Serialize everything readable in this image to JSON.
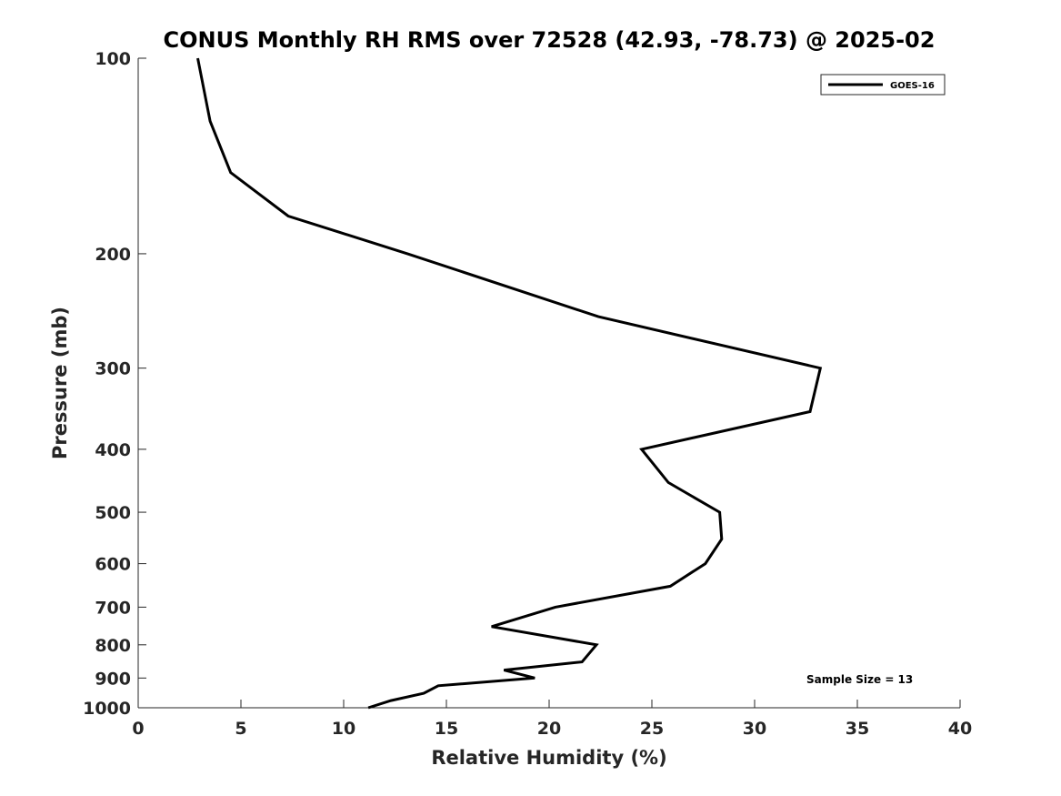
{
  "chart_data": {
    "type": "line",
    "title": "CONUS Monthly RH RMS over 72528 (42.93, -78.73) @ 2025-02",
    "xlabel": "Relative Humidity (%)",
    "ylabel": "Pressure (mb)",
    "xlim": [
      0,
      40
    ],
    "ylim": [
      100,
      1000
    ],
    "y_scale": "log",
    "y_reversed": true,
    "x_ticks": [
      0,
      5,
      10,
      15,
      20,
      25,
      30,
      35,
      40
    ],
    "x_tick_labels": [
      "0",
      "5",
      "10",
      "15",
      "20",
      "25",
      "30",
      "35",
      "40"
    ],
    "y_ticks": [
      100,
      200,
      300,
      400,
      500,
      600,
      700,
      800,
      900,
      1000
    ],
    "y_tick_labels": [
      "100",
      "200",
      "300",
      "400",
      "500",
      "600",
      "700",
      "800",
      "900",
      "1000"
    ],
    "grid": false,
    "legend_position": "top-right",
    "series": [
      {
        "name": "GOES-16",
        "color": "#000000",
        "points": [
          {
            "x": 2.9,
            "p": 100
          },
          {
            "x": 3.5,
            "p": 125
          },
          {
            "x": 4.5,
            "p": 150
          },
          {
            "x": 7.3,
            "p": 175
          },
          {
            "x": 13.1,
            "p": 200
          },
          {
            "x": 22.4,
            "p": 250
          },
          {
            "x": 33.2,
            "p": 300
          },
          {
            "x": 32.7,
            "p": 350
          },
          {
            "x": 24.5,
            "p": 400
          },
          {
            "x": 25.8,
            "p": 450
          },
          {
            "x": 28.3,
            "p": 500
          },
          {
            "x": 28.4,
            "p": 550
          },
          {
            "x": 27.6,
            "p": 600
          },
          {
            "x": 25.9,
            "p": 650
          },
          {
            "x": 20.3,
            "p": 700
          },
          {
            "x": 17.2,
            "p": 750
          },
          {
            "x": 22.3,
            "p": 800
          },
          {
            "x": 21.6,
            "p": 850
          },
          {
            "x": 17.8,
            "p": 875
          },
          {
            "x": 19.3,
            "p": 900
          },
          {
            "x": 14.6,
            "p": 925
          },
          {
            "x": 13.9,
            "p": 950
          },
          {
            "x": 12.3,
            "p": 975
          },
          {
            "x": 11.2,
            "p": 1000
          }
        ]
      }
    ],
    "annotations": [
      "Sample Size = 13"
    ]
  }
}
